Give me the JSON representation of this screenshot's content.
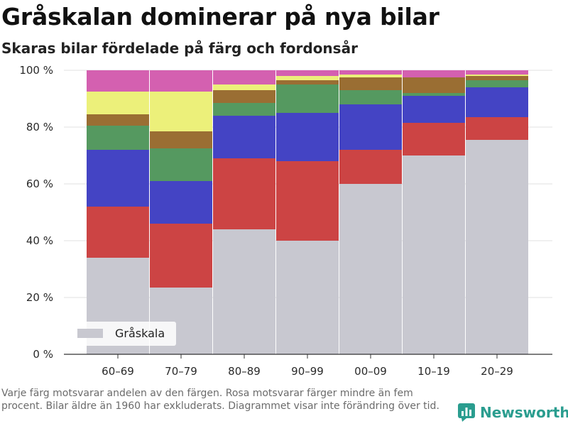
{
  "title": "Gråskalan dominerar på nya bilar",
  "subtitle": "Skaras bilar fördelade på färg och fordonsår",
  "caption": "Varje färg motsvarar andelen av den färgen. Rosa motsvarar färger mindre än fem procent. Bilar äldre än 1960 har exkluderats. Diagrammet visar inte förändring över tid.",
  "brand": {
    "name": "Newsworthy",
    "icon": "newsworthy-logo-icon"
  },
  "colors": {
    "grayscale": "#c8c8d0",
    "red": "#cc4444",
    "blue": "#4444c4",
    "green": "#559960",
    "brown": "#9a6e33",
    "yellow": "#ecf07a",
    "pink": "#d460b0",
    "brand": "#2a9d8f"
  },
  "chart_data": {
    "type": "bar",
    "stacked": true,
    "categories": [
      "60–69",
      "70–79",
      "80–89",
      "90–99",
      "00–09",
      "10–19",
      "20–29"
    ],
    "series": [
      {
        "name": "Gråskala",
        "color": "#c8c8d0",
        "values": [
          34,
          23.5,
          44,
          40,
          60,
          70,
          75.5
        ]
      },
      {
        "color": "#cc4444",
        "values": [
          18,
          22.5,
          25,
          28,
          12,
          11.5,
          8
        ]
      },
      {
        "color": "#4444c4",
        "values": [
          20,
          15,
          15,
          17,
          16,
          9.5,
          10.5
        ]
      },
      {
        "color": "#559960",
        "values": [
          8.5,
          11.5,
          4.5,
          10,
          5,
          1,
          2.5
        ]
      },
      {
        "color": "#9a6e33",
        "values": [
          4,
          6,
          4.5,
          1.5,
          4.5,
          5.5,
          1.5
        ]
      },
      {
        "color": "#ecf07a",
        "values": [
          8,
          14,
          2,
          1.5,
          1,
          0,
          0.5
        ]
      },
      {
        "color": "#d460b0",
        "values": [
          7.5,
          7.5,
          5,
          2,
          1.5,
          2.5,
          1.5
        ]
      }
    ],
    "ylim": [
      0,
      100
    ],
    "yticks": [
      0,
      20,
      40,
      60,
      80,
      100
    ],
    "ytick_labels": [
      "0 %",
      "20 %",
      "40 %",
      "60 %",
      "80 %",
      "100 %"
    ],
    "grid": true,
    "legend": {
      "position": "bottom-left",
      "entries": [
        "Gråskala"
      ]
    }
  }
}
